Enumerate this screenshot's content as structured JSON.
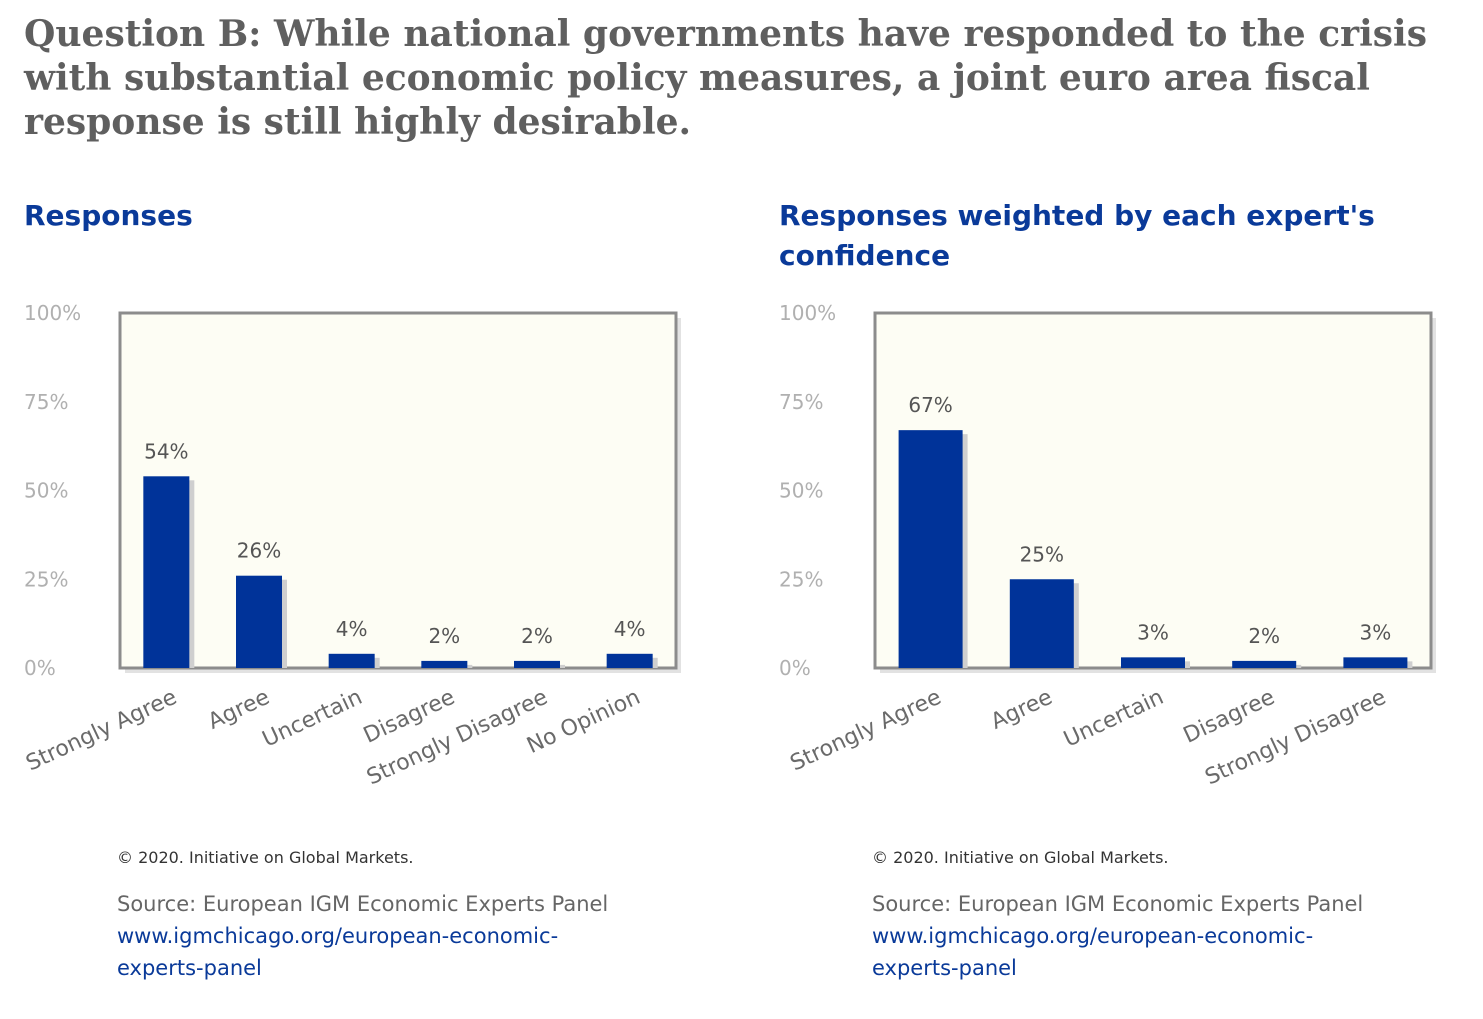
{
  "question": "Question B: While national governments have responded to the crisis with substantial economic policy measures, a joint euro area fiscal response is still highly desirable.",
  "colors": {
    "bar": "#003399",
    "plot_bg": "#fdfdf4",
    "frame": "#8c8c8c",
    "title": "#0a3a99"
  },
  "chart_data": [
    {
      "type": "bar",
      "title": "Responses",
      "categories": [
        "Strongly Agree",
        "Agree",
        "Uncertain",
        "Disagree",
        "Strongly Disagree",
        "No Opinion"
      ],
      "values": [
        54,
        26,
        4,
        2,
        2,
        4
      ],
      "value_labels": [
        "54%",
        "26%",
        "4%",
        "2%",
        "2%",
        "4%"
      ],
      "yticks": [
        "0%",
        "25%",
        "50%",
        "75%",
        "100%"
      ],
      "ylim": [
        0,
        100
      ],
      "grid": false,
      "copyright": "© 2020. Initiative on Global Markets.",
      "source": "Source: European IGM Economic Experts Panel",
      "link": "www.igmchicago.org/european-economic-experts-panel"
    },
    {
      "type": "bar",
      "title": "Responses weighted by each expert's confidence",
      "categories": [
        "Strongly Agree",
        "Agree",
        "Uncertain",
        "Disagree",
        "Strongly Disagree"
      ],
      "values": [
        67,
        25,
        3,
        2,
        3
      ],
      "value_labels": [
        "67%",
        "25%",
        "3%",
        "2%",
        "3%"
      ],
      "yticks": [
        "0%",
        "25%",
        "50%",
        "75%",
        "100%"
      ],
      "ylim": [
        0,
        100
      ],
      "grid": false,
      "copyright": "© 2020. Initiative on Global Markets.",
      "source": "Source: European IGM Economic Experts Panel",
      "link": "www.igmchicago.org/european-economic-experts-panel"
    }
  ]
}
